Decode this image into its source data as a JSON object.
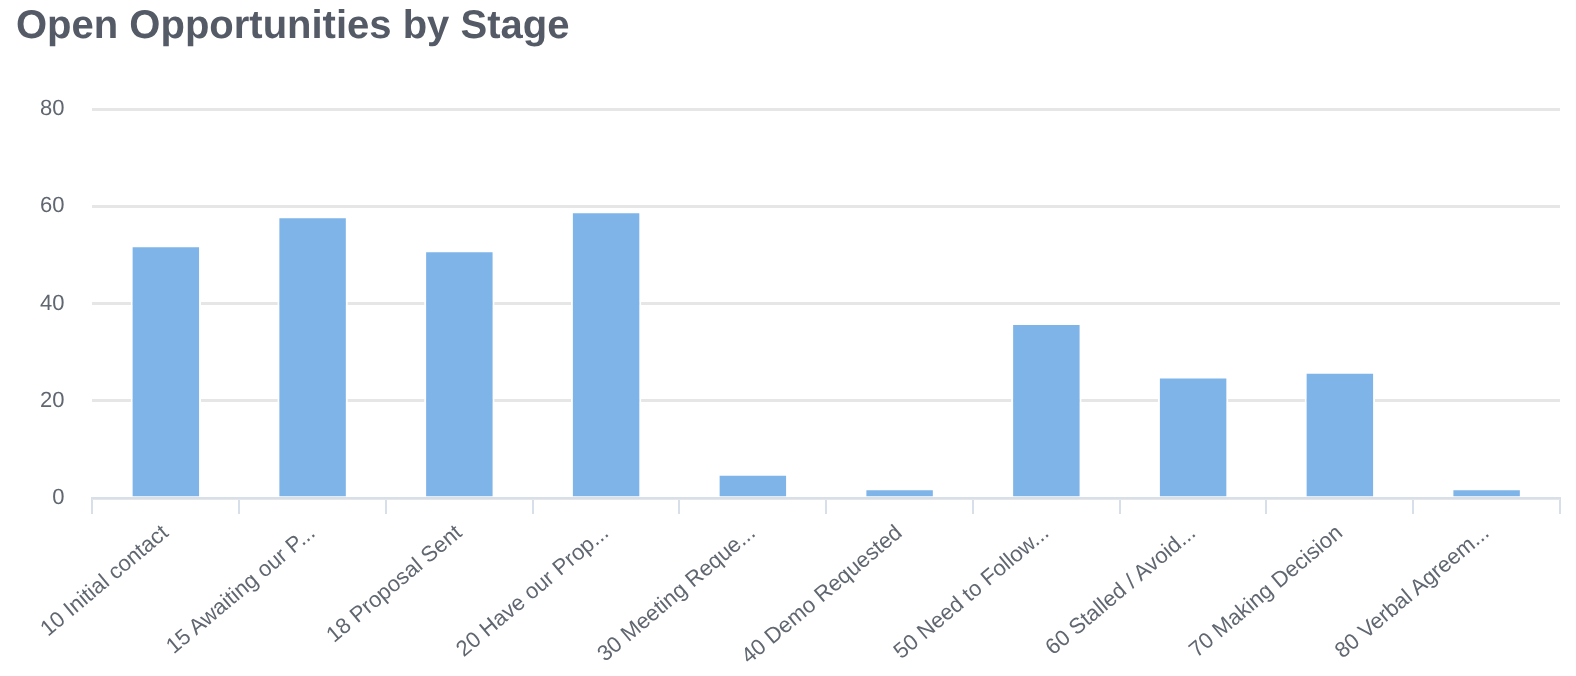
{
  "chart_data": {
    "type": "bar",
    "title": "Open Opportunities by Stage",
    "categories": [
      "10 Initial contact",
      "15 Awaiting our P...",
      "18 Proposal Sent",
      "20 Have our Prop...",
      "30 Meeting Reque...",
      "40 Demo Requested",
      "50 Need to Follow...",
      "60 Stalled / Avoid...",
      "70 Making Decision",
      "80 Verbal Agreem..."
    ],
    "values": [
      52,
      58,
      51,
      59,
      5,
      2,
      36,
      25,
      26,
      2
    ],
    "color": "#7eb4e8",
    "ylim": [
      0,
      80
    ],
    "yticks": [
      0,
      20,
      40,
      60,
      80
    ],
    "grid": "y",
    "legend": false
  }
}
